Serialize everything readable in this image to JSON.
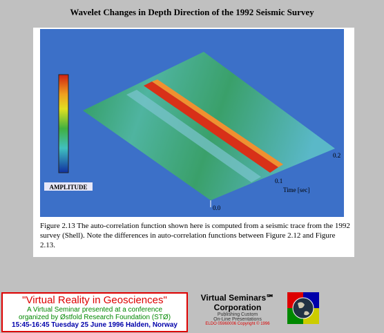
{
  "header": {
    "title": "Wavelet Changes in Depth Direction of the 1992 Seismic Survey"
  },
  "figure": {
    "amplitude_label": "AMPLITUDE",
    "time_label": "Time [sec]",
    "time_ticks": [
      "0.0",
      "0.1",
      "0.2"
    ],
    "caption": "Figure 2.13  The auto-correlation function shown here is computed from a seismic trace from the 1992 survey (Shell).  Note the differences in auto-correlation functions between Figure 2.12 and Figure 2.13."
  },
  "banner": {
    "title": "\"Virtual Reality in Geosciences\"",
    "line1": "A Virtual Seminar presented at a conference",
    "line2": "organized by Østfold Research Foundation (STØ)",
    "schedule": "15:45-16:45 Tuesday 25 June 1996 Halden, Norway",
    "company": "Virtual Seminars℠",
    "company2": "Corporation",
    "tagline1": "Publishing Custom",
    "tagline2": "On-Line Presentations",
    "copyright": "ELDO 05960006 Copyright © 1996"
  }
}
